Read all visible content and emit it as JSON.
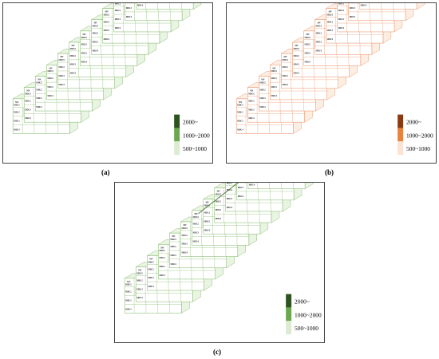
{
  "figure": {
    "cell_labels": {
      "header_short": "MV",
      "header_long": "MDC5",
      "columns": [
        "MDC1",
        "MDC2",
        "MDC3",
        "MDC4"
      ],
      "rows": [
        "MDC2",
        "MDC3",
        "MDC4"
      ]
    },
    "layer_count": 12,
    "panels": [
      {
        "id": "a",
        "caption": "(a)",
        "palette": {
          "high": "#2e5320",
          "mid": "#6aa84f",
          "low": "#dcebd2",
          "grid": "#8fbf77",
          "fill": "#eaf4e3"
        },
        "legend": [
          "2000~",
          "1000~2000",
          "500~1000"
        ],
        "has_path": false
      },
      {
        "id": "b",
        "caption": "(b)",
        "palette": {
          "high": "#8a3a10",
          "mid": "#e8823c",
          "low": "#fbe3d3",
          "grid": "#eb9c74",
          "fill": "#fdeee4"
        },
        "legend": [
          "2000~",
          "1000~2000",
          "500~1000"
        ],
        "has_path": false
      },
      {
        "id": "c",
        "caption": "(c)",
        "palette": {
          "high": "#2e5320",
          "mid": "#6aa84f",
          "low": "#dcebd2",
          "grid": "#8fbf77",
          "fill": "#eaf4e3"
        },
        "legend": [
          "2000~",
          "1000~2000",
          "500~1000"
        ],
        "has_path": true
      }
    ]
  }
}
